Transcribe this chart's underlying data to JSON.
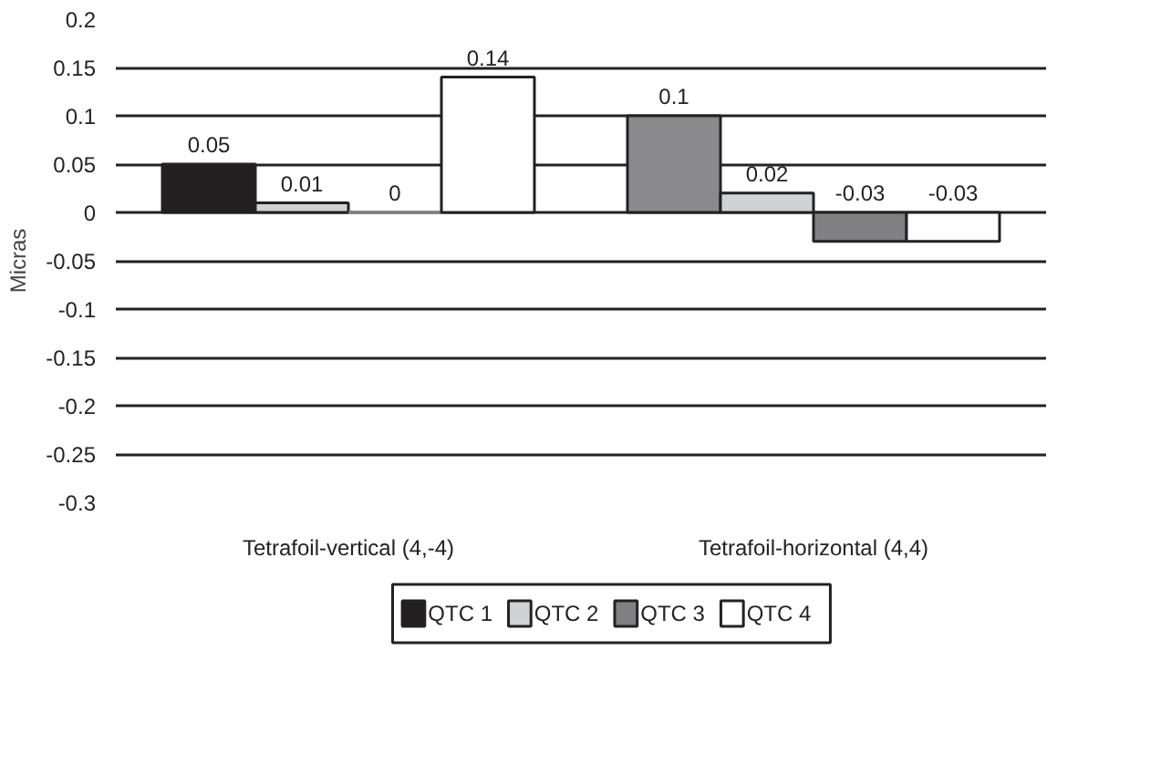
{
  "chart_data": {
    "type": "bar",
    "ylabel": "Micras",
    "categories": [
      "Tetrafoil-vertical (4,-4)",
      "Tetrafoil-horizontal (4,4)"
    ],
    "series": [
      {
        "name": "QTC 1",
        "color": "#231f20",
        "colors": [
          "#231f20",
          "#8a8a8d"
        ],
        "values": [
          0.05,
          0.1
        ]
      },
      {
        "name": "QTC 2",
        "color": "#d1d2d4",
        "values": [
          0.01,
          0.02
        ]
      },
      {
        "name": "QTC 3",
        "color": "#808083",
        "values": [
          0,
          -0.03
        ]
      },
      {
        "name": "QTC 4",
        "color": "#ffffff",
        "values": [
          0.14,
          -0.03
        ]
      }
    ],
    "data_labels": true,
    "ylim": [
      -0.3,
      0.2
    ],
    "yticks": [
      -0.3,
      -0.25,
      -0.2,
      -0.15,
      -0.1,
      -0.05,
      0,
      0.05,
      0.1,
      0.15,
      0.2
    ],
    "grid": "y",
    "legend": "bottom"
  }
}
